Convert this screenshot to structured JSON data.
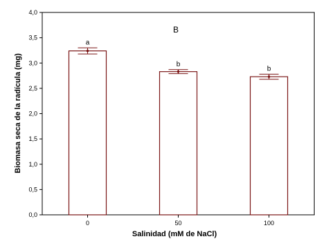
{
  "chart_data": {
    "type": "bar",
    "panel_label": "B",
    "xlabel": "Salinidad (mM de NaCl)",
    "ylabel": "Biomasa seca de la radícula (mg)",
    "categories": [
      "0",
      "50",
      "100"
    ],
    "values": [
      3.24,
      2.83,
      2.73
    ],
    "error": [
      0.06,
      0.04,
      0.05
    ],
    "significance_labels": [
      "a",
      "b",
      "b"
    ],
    "ylim": [
      0,
      4
    ],
    "yticks": [
      "0,0",
      "0,5",
      "1,0",
      "1,5",
      "2,0",
      "2,5",
      "3,0",
      "3,5",
      "4,0"
    ],
    "ytick_values": [
      0,
      0.5,
      1.0,
      1.5,
      2.0,
      2.5,
      3.0,
      3.5,
      4.0
    ],
    "grid": false,
    "colors": {
      "bar_stroke": "#7a1414",
      "bar_fill": "#ffffff",
      "axis": "#000000"
    }
  }
}
